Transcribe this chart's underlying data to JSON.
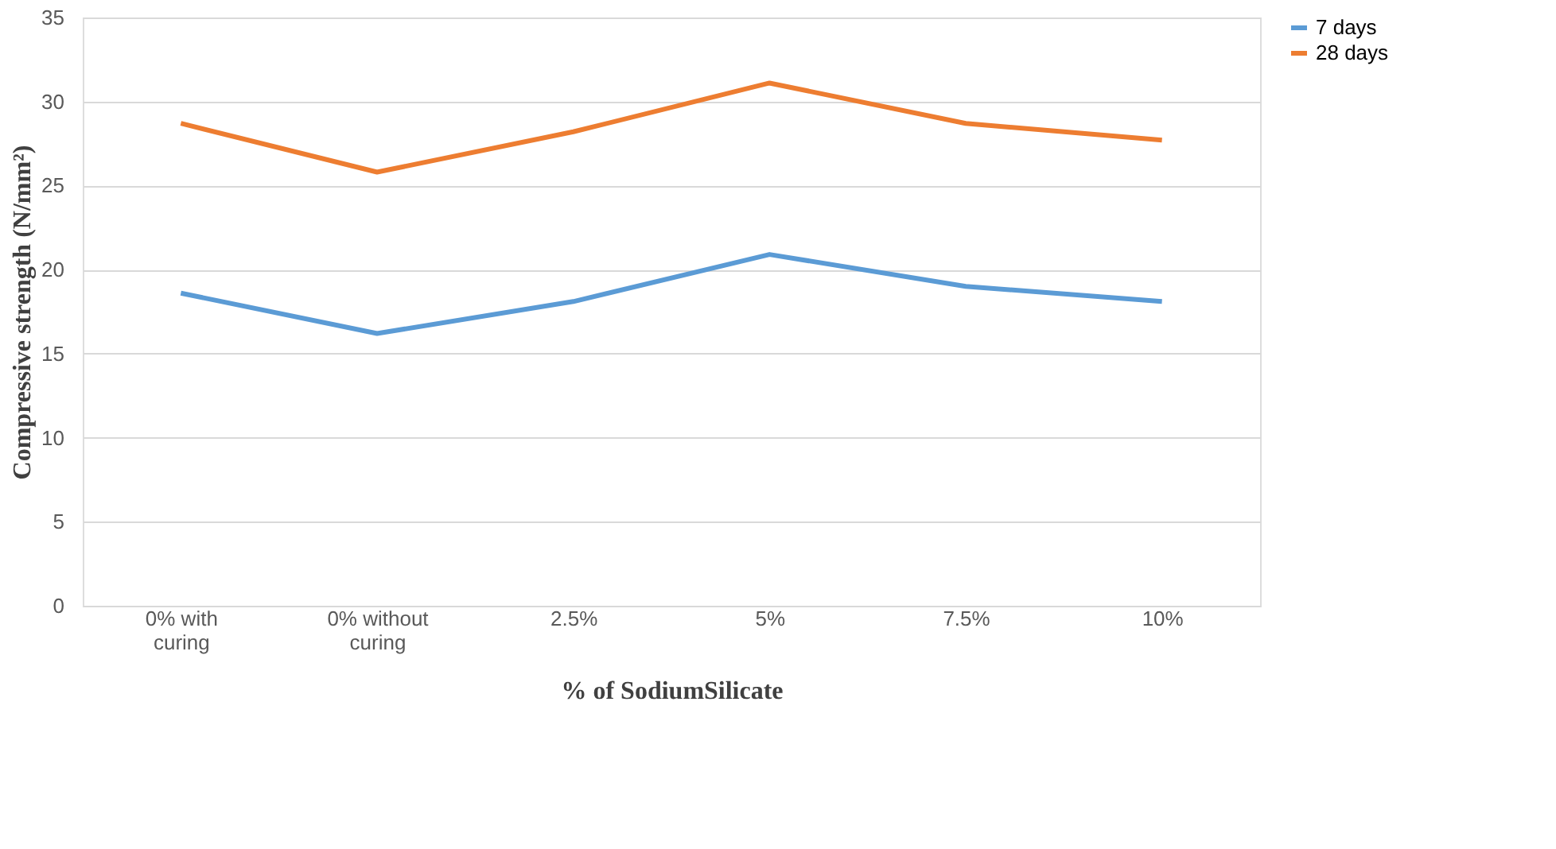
{
  "chart_data": {
    "type": "line",
    "xlabel": "% of SodiumSilicate",
    "ylabel": "Compressive strength (N/mm²)",
    "categories": [
      "0% with\ncuring",
      "0% without\ncuring",
      "2.5%",
      "5%",
      "7.5%",
      "10%"
    ],
    "series": [
      {
        "name": "7 days",
        "color": "#5b9bd5",
        "values": [
          18.6,
          16.2,
          18.1,
          20.9,
          19.0,
          18.1
        ]
      },
      {
        "name": "28 days",
        "color": "#ed7d31",
        "values": [
          28.7,
          25.8,
          28.2,
          31.1,
          28.7,
          27.7
        ]
      }
    ],
    "ylim": [
      0,
      35
    ],
    "yticks": [
      0,
      5,
      10,
      15,
      20,
      25,
      30,
      35
    ],
    "grid": "y",
    "legend": "right",
    "marker": "none",
    "line_style": "solid"
  }
}
